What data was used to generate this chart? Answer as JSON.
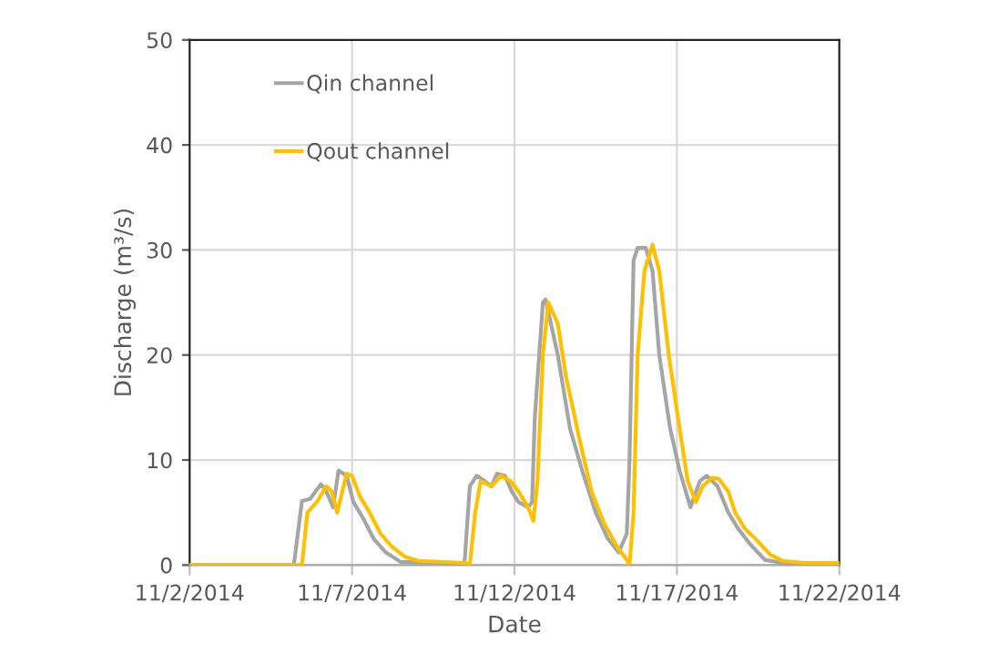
{
  "chart_data": {
    "type": "line",
    "xlabel": "Date",
    "ylabel": "Discharge (m³/s)",
    "xlim": [
      "2014-11-02",
      "2014-11-22"
    ],
    "xticks": [
      {
        "value": "2014-11-02",
        "label": "11/2/2014"
      },
      {
        "value": "2014-11-07",
        "label": "11/7/2014"
      },
      {
        "value": "2014-11-12",
        "label": "11/12/2014"
      },
      {
        "value": "2014-11-17",
        "label": "11/17/2014"
      },
      {
        "value": "2014-11-22",
        "label": "11/22/2014"
      }
    ],
    "ylim": [
      0,
      50
    ],
    "yticks": [
      0,
      10,
      20,
      30,
      40,
      50
    ],
    "grid": true,
    "legend": "top left",
    "marker": "none",
    "line_style": "solid",
    "series": [
      {
        "name": "Qin channel",
        "color": "#a5a5a5",
        "x": [
          "2014-11-02T00:00",
          "2014-11-05T05:00",
          "2014-11-05T11:00",
          "2014-11-05T17:00",
          "2014-11-06T01:00",
          "2014-11-06T05:00",
          "2014-11-06T10:00",
          "2014-11-06T14:00",
          "2014-11-06T20:00",
          "2014-11-07T01:00",
          "2014-11-07T08:00",
          "2014-11-07T16:00",
          "2014-11-08T01:00",
          "2014-11-08T12:00",
          "2014-11-10T04:00",
          "2014-11-10T11:00",
          "2014-11-10T15:00",
          "2014-11-10T20:00",
          "2014-11-11T02:00",
          "2014-11-11T07:00",
          "2014-11-11T11:00",
          "2014-11-11T17:00",
          "2014-11-11T22:00",
          "2014-11-12T03:00",
          "2014-11-12T10:00",
          "2014-11-12T13:00",
          "2014-11-12T15:00",
          "2014-11-12T21:00",
          "2014-11-12T23:00",
          "2014-11-13T08:00",
          "2014-11-13T17:00",
          "2014-11-14T02:00",
          "2014-11-14T12:00",
          "2014-11-14T21:00",
          "2014-11-15T05:00",
          "2014-11-15T11:00",
          "2014-11-15T13:00",
          "2014-11-15T16:00",
          "2014-11-15T19:00",
          "2014-11-16T01:00",
          "2014-11-16T06:00",
          "2014-11-16T11:00",
          "2014-11-16T19:00",
          "2014-11-17T02:00",
          "2014-11-17T10:00",
          "2014-11-17T17:00",
          "2014-11-17T22:00",
          "2014-11-18T06:00",
          "2014-11-18T14:00",
          "2014-11-18T21:00",
          "2014-11-19T06:00",
          "2014-11-19T17:00",
          "2014-11-20T06:00",
          "2014-11-22T00:00"
        ],
        "values": [
          0,
          0,
          6.1,
          6.3,
          7.7,
          7,
          5.5,
          9,
          8.5,
          6,
          4.5,
          2.5,
          1.2,
          0.3,
          0.2,
          0,
          7.5,
          8.5,
          8,
          7.5,
          8.7,
          8.5,
          7,
          6,
          5.5,
          6,
          14,
          25,
          25.3,
          20,
          13,
          9,
          5,
          2.5,
          1.2,
          3,
          10,
          29,
          30.2,
          30.2,
          28,
          20,
          13,
          9,
          5.5,
          8,
          8.5,
          7.5,
          5,
          3.5,
          2,
          0.5,
          0.2,
          0
        ]
      },
      {
        "name": "Qout channel",
        "color": "#ffc000",
        "x": [
          "2014-11-02T00:00",
          "2014-11-05T11:00",
          "2014-11-05T15:00",
          "2014-11-05T22:00",
          "2014-11-06T05:00",
          "2014-11-06T09:00",
          "2014-11-06T13:00",
          "2014-11-06T20:00",
          "2014-11-07T00:00",
          "2014-11-07T06:00",
          "2014-11-07T13:00",
          "2014-11-07T21:00",
          "2014-11-08T05:00",
          "2014-11-08T15:00",
          "2014-11-09T01:00",
          "2014-11-10T12:00",
          "2014-11-10T15:00",
          "2014-11-10T19:00",
          "2014-11-10T23:00",
          "2014-11-11T07:00",
          "2014-11-11T14:00",
          "2014-11-11T21:00",
          "2014-11-12T03:00",
          "2014-11-12T10:00",
          "2014-11-12T14:00",
          "2014-11-12T17:00",
          "2014-11-12T21:00",
          "2014-11-13T01:00",
          "2014-11-13T08:00",
          "2014-11-13T14:00",
          "2014-11-14T00:00",
          "2014-11-14T09:00",
          "2014-11-14T18:00",
          "2014-11-15T05:00",
          "2014-11-15T11:00",
          "2014-11-15T13:00",
          "2014-11-15T16:00",
          "2014-11-15T19:00",
          "2014-11-16T00:00",
          "2014-11-16T06:00",
          "2014-11-16T11:00",
          "2014-11-16T18:00",
          "2014-11-17T02:00",
          "2014-11-17T08:00",
          "2014-11-17T14:00",
          "2014-11-17T19:00",
          "2014-11-18T02:00",
          "2014-11-18T07:00",
          "2014-11-18T14:00",
          "2014-11-18T19:00",
          "2014-11-19T02:00",
          "2014-11-19T10:00",
          "2014-11-19T21:00",
          "2014-11-20T06:00",
          "2014-11-20T22:00",
          "2014-11-22T00:00"
        ],
        "values": [
          0,
          0,
          5,
          6,
          7.5,
          7,
          5,
          8.7,
          8.5,
          6.5,
          5,
          3,
          1.8,
          0.8,
          0.4,
          0.2,
          0,
          5,
          8,
          7.5,
          8.5,
          8,
          7,
          5.5,
          4.2,
          8,
          20,
          25,
          23,
          18,
          12,
          7,
          4,
          1.5,
          0.5,
          0,
          5,
          20,
          28,
          30.5,
          28,
          20,
          13,
          8,
          6,
          7.5,
          8.3,
          8.2,
          7,
          5,
          3.5,
          2.5,
          1,
          0.4,
          0.2,
          0.2
        ]
      }
    ]
  }
}
